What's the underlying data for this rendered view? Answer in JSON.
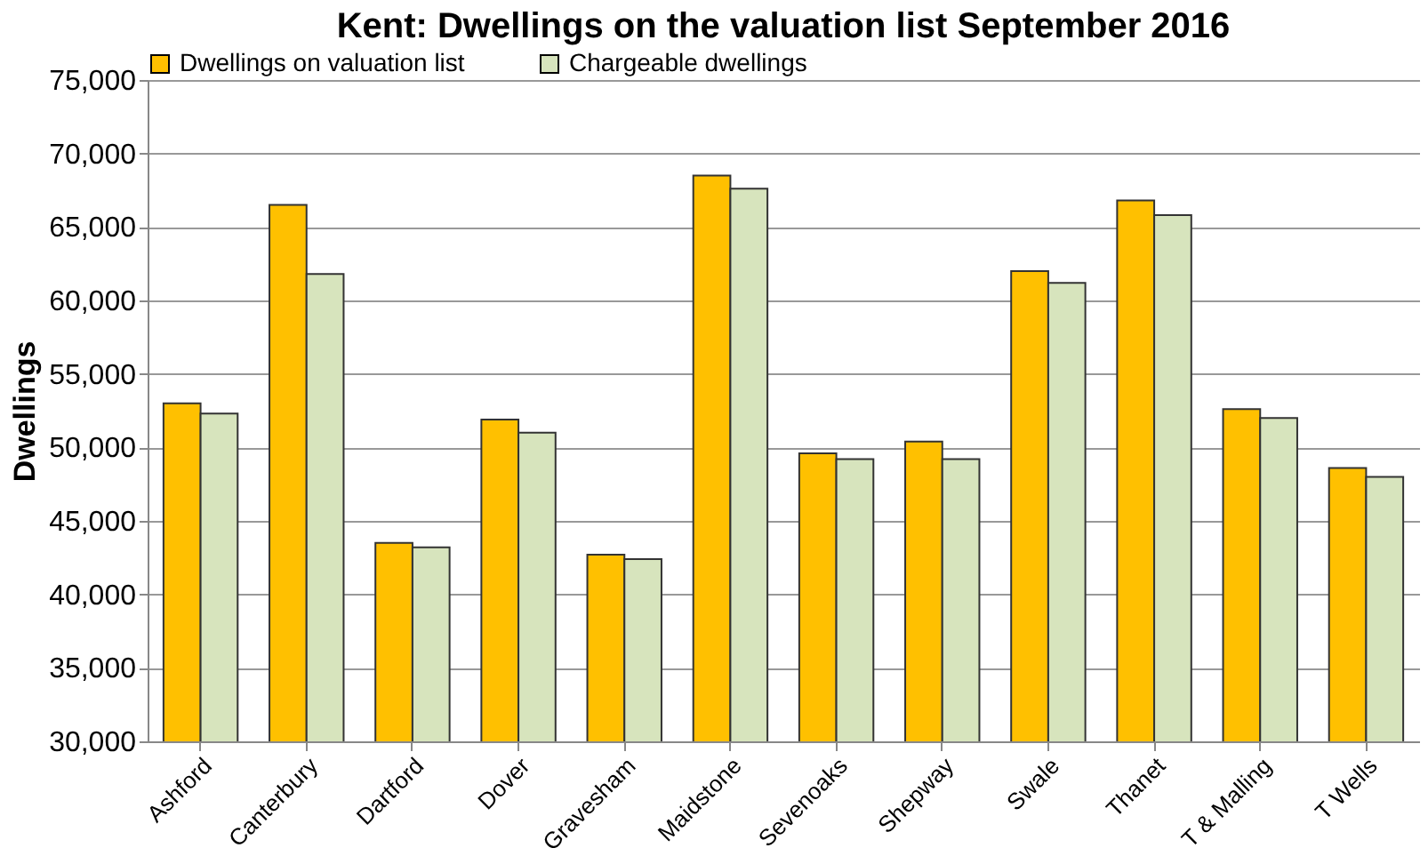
{
  "chart_data": {
    "type": "bar",
    "title": "Kent: Dwellings on the valuation list September 2016",
    "ylabel": "Dwellings",
    "categories": [
      "Ashford",
      "Canterbury",
      "Dartford",
      "Dover",
      "Gravesham",
      "Maidstone",
      "Sevenoaks",
      "Shepway",
      "Swale",
      "Thanet",
      "T & Malling",
      "T Wells"
    ],
    "series": [
      {
        "name": "Dwellings on valuation list",
        "color": "#ffc000",
        "values": [
          53000,
          66500,
          43500,
          51900,
          42700,
          68500,
          49600,
          50400,
          62000,
          66800,
          52600,
          48600
        ]
      },
      {
        "name": "Chargeable dwellings",
        "color": "#d7e4bd",
        "values": [
          52300,
          61800,
          43200,
          51000,
          42400,
          67600,
          49200,
          49200,
          61200,
          65800,
          52000,
          48000
        ]
      }
    ],
    "ylim": [
      30000,
      75000
    ],
    "yticks": [
      {
        "value": 30000,
        "label": "30,000"
      },
      {
        "value": 35000,
        "label": "35,000"
      },
      {
        "value": 40000,
        "label": "40,000"
      },
      {
        "value": 45000,
        "label": "45,000"
      },
      {
        "value": 50000,
        "label": "50,000"
      },
      {
        "value": 55000,
        "label": "55,000"
      },
      {
        "value": 60000,
        "label": "60,000"
      },
      {
        "value": 65000,
        "label": "65,000"
      },
      {
        "value": 70000,
        "label": "70,000"
      },
      {
        "value": 75000,
        "label": "75,000"
      }
    ],
    "grid": "y",
    "legend": "top"
  }
}
